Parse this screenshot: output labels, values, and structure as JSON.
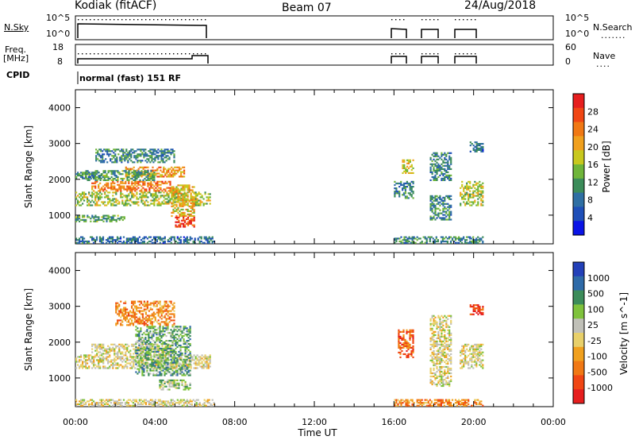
{
  "header": {
    "station": "Kodiak (fitACF)",
    "beam": "Beam 07",
    "date": "24/Aug/2018"
  },
  "top_panels": {
    "nsky_label": "N.Sky",
    "nsky_ticks": [
      "10^5",
      "10^0"
    ],
    "nsearch_label": "N.Search",
    "nsearch_ticks": [
      "10^5",
      "10^0"
    ],
    "freq_label_1": "Freq.",
    "freq_label_2": "[MHz]",
    "freq_ticks": [
      "18",
      "8"
    ],
    "nave_label": "Nave",
    "nave_ticks": [
      "60",
      "0"
    ],
    "cpid_label": "CPID",
    "cpid_text": "normal (fast) 151 RF"
  },
  "colors": {
    "power_scale": [
      "#0a14e6",
      "#1f4fb8",
      "#2f6fa3",
      "#3c8c5a",
      "#6fb53a",
      "#c8c81e",
      "#f0a01e",
      "#f07814",
      "#f04614",
      "#e61e1e"
    ],
    "velocity_scale": [
      "#2340b8",
      "#2e6aa8",
      "#3c8c5a",
      "#7fc23c",
      "#c0c0b8",
      "#e8d06a",
      "#f0a01e",
      "#f07814",
      "#f04614",
      "#e61e1e"
    ]
  },
  "chart_data": [
    {
      "type": "heatmap",
      "name_panel": "power",
      "xlabel": "",
      "ylabel": "Slant Range [km]",
      "ylim": [
        200,
        4500
      ],
      "xlim_hours": [
        0,
        24
      ],
      "yticks": [
        "1000",
        "2000",
        "3000",
        "4000"
      ],
      "colorbar_label": "Power [dB]",
      "colorbar_ticks": [
        "28",
        "24",
        "20",
        "16",
        "12",
        "8",
        "4"
      ],
      "colorbar_range": [
        0,
        32
      ],
      "clusters": [
        {
          "t0": 0.0,
          "t1": 6.8,
          "r0": 1300,
          "r1": 1700,
          "val": 16
        },
        {
          "t0": 0.8,
          "t1": 4.8,
          "r0": 1700,
          "r1": 2000,
          "val": 24
        },
        {
          "t0": 2.5,
          "t1": 5.5,
          "r0": 2100,
          "r1": 2400,
          "val": 22
        },
        {
          "t0": 0.5,
          "t1": 4.0,
          "r0": 2000,
          "r1": 2300,
          "val": 12
        },
        {
          "t0": 0.0,
          "t1": 1.5,
          "r0": 2050,
          "r1": 2250,
          "val": 10
        },
        {
          "t0": 4.8,
          "t1": 6.0,
          "r0": 1000,
          "r1": 1900,
          "val": 20
        },
        {
          "t0": 5.0,
          "t1": 6.0,
          "r0": 700,
          "r1": 1000,
          "val": 28
        },
        {
          "t0": 0.0,
          "t1": 2.5,
          "r0": 850,
          "r1": 1050,
          "val": 12
        },
        {
          "t0": 1.0,
          "t1": 5.0,
          "r0": 2500,
          "r1": 2900,
          "val": 10
        },
        {
          "t0": 0.0,
          "t1": 7.0,
          "r0": 250,
          "r1": 450,
          "val": 8
        },
        {
          "t0": 16.0,
          "t1": 17.0,
          "r0": 1500,
          "r1": 2000,
          "val": 10
        },
        {
          "t0": 16.4,
          "t1": 17.0,
          "r0": 2200,
          "r1": 2600,
          "val": 18
        },
        {
          "t0": 17.8,
          "t1": 18.9,
          "r0": 900,
          "r1": 1600,
          "val": 10
        },
        {
          "t0": 17.8,
          "t1": 18.9,
          "r0": 2000,
          "r1": 2800,
          "val": 10
        },
        {
          "t0": 19.3,
          "t1": 20.5,
          "r0": 1300,
          "r1": 2000,
          "val": 16
        },
        {
          "t0": 19.8,
          "t1": 20.5,
          "r0": 2800,
          "r1": 3100,
          "val": 8
        },
        {
          "t0": 16.0,
          "t1": 20.5,
          "r0": 250,
          "r1": 450,
          "val": 10
        }
      ]
    },
    {
      "type": "heatmap",
      "name_panel": "velocity",
      "xlabel": "Time UT",
      "ylabel": "Slant Range [km]",
      "ylim": [
        200,
        4500
      ],
      "xlim_hours": [
        0,
        24
      ],
      "xticks": [
        "00:00",
        "04:00",
        "08:00",
        "12:00",
        "16:00",
        "20:00",
        "00:00"
      ],
      "yticks": [
        "1000",
        "2000",
        "3000",
        "4000"
      ],
      "colorbar_label": "Velocity [m s^-1]",
      "colorbar_ticks": [
        "1000",
        "500",
        "100",
        "25",
        "-25",
        "-100",
        "-500",
        "-1000"
      ],
      "colorbar_range": [
        0,
        10
      ],
      "clusters": [
        {
          "t0": 0.0,
          "t1": 6.8,
          "r0": 1300,
          "r1": 1700,
          "val": 5
        },
        {
          "t0": 0.8,
          "t1": 4.8,
          "r0": 1700,
          "r1": 2000,
          "val": 5
        },
        {
          "t0": 3.0,
          "t1": 5.8,
          "r0": 1100,
          "r1": 2500,
          "val": 7
        },
        {
          "t0": 4.2,
          "t1": 5.8,
          "r0": 700,
          "r1": 1000,
          "val": 6
        },
        {
          "t0": 2.0,
          "t1": 5.0,
          "r0": 2500,
          "r1": 3200,
          "val": 3
        },
        {
          "t0": 0.0,
          "t1": 7.0,
          "r0": 250,
          "r1": 450,
          "val": 5
        },
        {
          "t0": 16.2,
          "t1": 17.0,
          "r0": 1600,
          "r1": 2400,
          "val": 2
        },
        {
          "t0": 17.8,
          "t1": 18.9,
          "r0": 800,
          "r1": 2800,
          "val": 5
        },
        {
          "t0": 19.3,
          "t1": 20.5,
          "r0": 1300,
          "r1": 2000,
          "val": 5
        },
        {
          "t0": 19.8,
          "t1": 20.5,
          "r0": 2800,
          "r1": 3100,
          "val": 1
        },
        {
          "t0": 16.0,
          "t1": 20.5,
          "r0": 250,
          "r1": 450,
          "val": 3
        }
      ]
    }
  ]
}
